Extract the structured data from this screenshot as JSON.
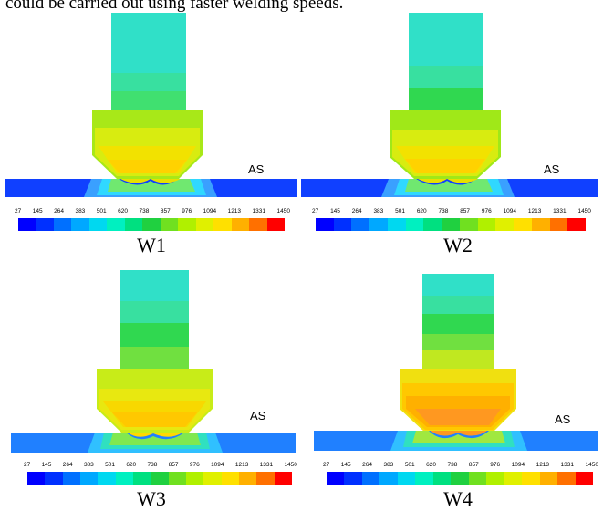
{
  "caption_fragment": "could be carried out using faster welding speeds.",
  "side_label": "AS",
  "scale_ticks": [
    "27",
    "145",
    "264",
    "383",
    "501",
    "620",
    "738",
    "857",
    "976",
    "1094",
    "1213",
    "1331",
    "1450"
  ],
  "colorbar_colors": [
    "#0000ff",
    "#0030ff",
    "#0070ff",
    "#00a8ff",
    "#00d8f0",
    "#00f0c0",
    "#00e080",
    "#20d040",
    "#70e020",
    "#b0f000",
    "#e0f000",
    "#ffe000",
    "#ffb000",
    "#ff7000",
    "#ff0000"
  ],
  "panels": [
    {
      "label": "W1"
    },
    {
      "label": "W2"
    },
    {
      "label": "W3"
    },
    {
      "label": "W4"
    }
  ]
}
